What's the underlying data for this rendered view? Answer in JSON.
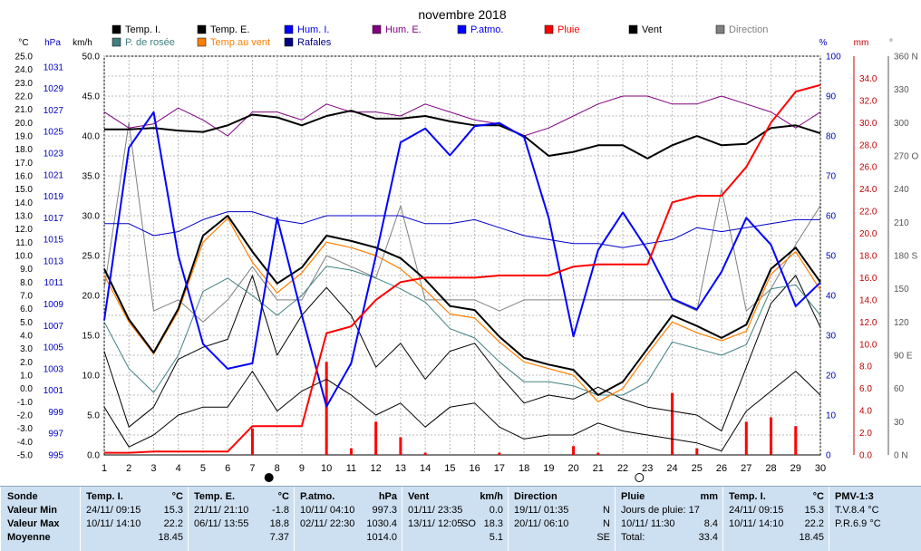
{
  "title": "novembre 2018",
  "colors": {
    "temp_i": "#000000",
    "temp_e": "#000000",
    "hum_i": "#0000c8",
    "hum_e": "#800080",
    "p_atmo": "#0000ff",
    "pluie": "#ff0000",
    "vent": "#000000",
    "direction": "#808080",
    "rosee": "#408080",
    "temp_vent": "#ff8000",
    "rafales": "#000080",
    "panel_bg": "#cde0f2"
  },
  "legend": [
    {
      "label": "Temp. I.",
      "color": "#000000"
    },
    {
      "label": "Temp. E.",
      "color": "#000000"
    },
    {
      "label": "Hum. I.",
      "color": "#0000ff"
    },
    {
      "label": "Hum. E.",
      "color": "#800080"
    },
    {
      "label": "P.atmo.",
      "color": "#0000ff"
    },
    {
      "label": "Pluie",
      "color": "#ff0000"
    },
    {
      "label": "Vent",
      "color": "#000000"
    },
    {
      "label": "Direction",
      "color": "#808080"
    },
    {
      "label": "P. de rosée",
      "color": "#408080"
    },
    {
      "label": "Temp au vent",
      "color": "#ff8000"
    },
    {
      "label": "Rafales",
      "color": "#000080"
    }
  ],
  "chart_data": {
    "type": "line",
    "title": "novembre 2018",
    "x": [
      1,
      2,
      3,
      4,
      5,
      6,
      7,
      8,
      9,
      10,
      11,
      12,
      13,
      14,
      15,
      16,
      17,
      18,
      19,
      20,
      21,
      22,
      23,
      24,
      25,
      26,
      27,
      28,
      29,
      30
    ],
    "moon_phases": [
      {
        "day": 8,
        "phase": "new"
      },
      {
        "day": 23,
        "phase": "full"
      }
    ],
    "axes": {
      "temp": {
        "label": "°C",
        "range": [
          -5.0,
          25.0
        ],
        "ticks": [
          "25.0",
          "24.0",
          "23.0",
          "22.0",
          "21.0",
          "20.0",
          "19.0",
          "18.0",
          "17.0",
          "16.0",
          "15.0",
          "14.0",
          "13.0",
          "12.0",
          "11.0",
          "10.0",
          "9.0",
          "8.0",
          "7.0",
          "6.0",
          "5.0",
          "4.0",
          "3.0",
          "2.0",
          "1.0",
          "0.0",
          "-1.0",
          "-2.0",
          "-3.0",
          "-4.0",
          "-5.0"
        ]
      },
      "pressure": {
        "label": "hPa",
        "range": [
          995,
          1032
        ],
        "ticks": [
          "1031",
          "1029",
          "1027",
          "1025",
          "1023",
          "1021",
          "1019",
          "1017",
          "1015",
          "1013",
          "1011",
          "1009",
          "1007",
          "1005",
          "1003",
          "1001",
          "999",
          "997",
          "995"
        ]
      },
      "wind": {
        "label": "km/h",
        "range": [
          0,
          50
        ],
        "ticks": [
          "50.0",
          "45.0",
          "40.0",
          "35.0",
          "30.0",
          "25.0",
          "20.0",
          "15.0",
          "10.0",
          "5.0",
          "0.0"
        ]
      },
      "humidity": {
        "label": "%",
        "range": [
          0,
          100
        ],
        "ticks": [
          "100",
          "90",
          "80",
          "70",
          "60",
          "50",
          "40",
          "30",
          "20",
          "10",
          "0"
        ]
      },
      "rain": {
        "label": "mm",
        "range": [
          0,
          36
        ],
        "ticks": [
          "34.0",
          "32.0",
          "30.0",
          "28.0",
          "26.0",
          "24.0",
          "22.0",
          "20.0",
          "18.0",
          "16.0",
          "14.0",
          "12.0",
          "10.0",
          "8.0",
          "6.0",
          "4.0",
          "2.0",
          "0.0"
        ]
      },
      "direction": {
        "label": "°",
        "range": [
          0,
          360
        ],
        "ticks": [
          "360 N",
          "330",
          "300",
          "270 O",
          "240",
          "210",
          "180 S",
          "150",
          "120",
          "90 E",
          "60",
          "30",
          "0 N"
        ]
      }
    },
    "series": [
      {
        "name": "Temp. E.",
        "unit": "°C",
        "values": [
          9.0,
          5.2,
          2.7,
          6.0,
          11.5,
          13.0,
          10.3,
          7.9,
          9.1,
          11.5,
          11.1,
          10.6,
          9.8,
          8.2,
          6.2,
          5.9,
          3.9,
          2.3,
          1.8,
          1.4,
          -0.5,
          0.5,
          3.0,
          5.5,
          4.7,
          3.8,
          4.8,
          9.0,
          10.6,
          8.0
        ]
      },
      {
        "name": "Temp au vent",
        "unit": "°C",
        "values": [
          8.5,
          5.0,
          2.6,
          5.8,
          11.0,
          12.8,
          9.5,
          7.2,
          8.7,
          11.0,
          10.6,
          10.0,
          9.0,
          7.4,
          5.6,
          5.3,
          3.5,
          2.0,
          1.5,
          1.0,
          -1.0,
          0.0,
          2.6,
          5.0,
          4.2,
          3.6,
          4.3,
          8.6,
          10.3,
          7.4
        ]
      },
      {
        "name": "P. de rosée",
        "unit": "°C",
        "values": [
          5.0,
          1.5,
          -0.3,
          2.5,
          7.3,
          8.3,
          7.0,
          5.5,
          7.0,
          9.2,
          8.9,
          8.3,
          7.5,
          6.5,
          4.5,
          3.8,
          2.0,
          0.5,
          0.5,
          0.2,
          -0.5,
          -0.5,
          0.5,
          3.5,
          3.0,
          2.5,
          3.3,
          7.5,
          7.8,
          5.5
        ]
      },
      {
        "name": "Temp. I.",
        "unit": "°C",
        "values": [
          19.5,
          19.5,
          19.6,
          19.4,
          19.3,
          19.8,
          20.6,
          20.4,
          19.8,
          20.5,
          20.9,
          20.3,
          20.3,
          20.5,
          20.1,
          19.8,
          19.8,
          19.0,
          17.5,
          17.8,
          18.3,
          18.3,
          17.3,
          18.3,
          19.0,
          18.3,
          18.4,
          19.6,
          19.8,
          19.2
        ]
      },
      {
        "name": "Hum. E.",
        "unit": "%",
        "values": [
          86,
          82,
          83,
          87,
          84,
          80,
          86,
          86,
          84,
          88,
          86,
          86,
          85,
          88,
          86,
          84,
          83,
          80,
          82,
          85,
          88,
          90,
          90,
          88,
          88,
          90,
          88,
          86,
          82,
          86
        ]
      },
      {
        "name": "Hum. I.",
        "unit": "%",
        "values": [
          58,
          58,
          55,
          56,
          59,
          61,
          61,
          59,
          58,
          60,
          60,
          60,
          60,
          58,
          58,
          59,
          57,
          55,
          54,
          53,
          53,
          52,
          53,
          54,
          57,
          56,
          57,
          58,
          59,
          59
        ]
      },
      {
        "name": "P.atmo.",
        "unit": "hPa",
        "values": [
          1007.5,
          1023.5,
          1026.8,
          1013.5,
          1005.3,
          1003.0,
          1003.5,
          1017.0,
          1008.0,
          999.5,
          1003.5,
          1013.5,
          1024.0,
          1025.3,
          1022.8,
          1025.5,
          1025.8,
          1024.5,
          1017.0,
          1006.0,
          1014.0,
          1017.5,
          1014.0,
          1009.5,
          1008.5,
          1012.0,
          1017.0,
          1014.5,
          1008.8,
          1011.0
        ]
      },
      {
        "name": "Pluie",
        "unit": "mm",
        "values": [
          0.2,
          0.2,
          0.3,
          0.3,
          0.3,
          0.3,
          2.6,
          2.6,
          2.6,
          11.0,
          11.6,
          14.0,
          15.6,
          16.0,
          16.0,
          16.0,
          16.2,
          16.2,
          16.2,
          17.0,
          17.2,
          17.2,
          17.2,
          22.8,
          23.4,
          23.4,
          26.0,
          30.0,
          32.8,
          33.4
        ]
      },
      {
        "name": "Pluie journalière",
        "unit": "mm",
        "values": [
          0,
          0,
          0,
          0,
          0,
          0,
          2.4,
          0,
          0,
          8.4,
          0.6,
          3.0,
          1.6,
          0.2,
          0,
          0,
          0.2,
          0,
          0,
          0.8,
          0.2,
          0,
          0,
          5.6,
          0.6,
          0,
          3.0,
          3.4,
          2.6,
          0
        ]
      },
      {
        "name": "Rafales",
        "unit": "km/h",
        "values": [
          13.0,
          3.5,
          6.0,
          12.0,
          13.5,
          14.5,
          22.5,
          12.5,
          17.5,
          21.0,
          17.5,
          11.0,
          14.0,
          9.5,
          13.0,
          14.0,
          10.0,
          6.5,
          7.5,
          7.0,
          8.5,
          7.0,
          6.0,
          5.5,
          5.0,
          3.0,
          11.0,
          19.0,
          22.5,
          16.0
        ]
      },
      {
        "name": "Vent",
        "unit": "km/h",
        "values": [
          6.0,
          1.0,
          2.5,
          5.0,
          6.0,
          6.0,
          10.5,
          5.5,
          8.0,
          9.5,
          7.5,
          5.0,
          6.5,
          3.5,
          6.0,
          6.5,
          3.5,
          2.0,
          2.5,
          2.5,
          4.0,
          3.0,
          2.5,
          2.0,
          1.5,
          0.5,
          5.5,
          8.0,
          10.5,
          7.5
        ]
      },
      {
        "name": "Direction",
        "unit": "°",
        "values": [
          150,
          300,
          130,
          140,
          120,
          140,
          170,
          140,
          140,
          180,
          170,
          160,
          225,
          140,
          140,
          140,
          130,
          140,
          140,
          140,
          140,
          140,
          140,
          140,
          130,
          240,
          130,
          150,
          190,
          225
        ]
      }
    ]
  },
  "stats": {
    "columns": [
      {
        "id": "labels",
        "rows": [
          "Sonde",
          "Valeur Min",
          "Valeur Max",
          "Moyenne"
        ]
      },
      {
        "id": "temp_i",
        "header": "Temp. I.",
        "unit": "°C",
        "min": {
          "when": "24/11/  09:15",
          "value": "15.3"
        },
        "max": {
          "when": "10/11/  14:10",
          "value": "22.2"
        },
        "avg": "18.45"
      },
      {
        "id": "temp_e",
        "header": "Temp. E.",
        "unit": "°C",
        "min": {
          "when": "21/11/  21:10",
          "value": "-1.8"
        },
        "max": {
          "when": "06/11/  13:55",
          "value": "18.8"
        },
        "avg": "7.37"
      },
      {
        "id": "p_atmo",
        "header": "P.atmo.",
        "unit": "hPa",
        "min": {
          "when": "10/11/  04:10",
          "value": "997.3"
        },
        "max": {
          "when": "02/11/  22:30",
          "value": "1030.4"
        },
        "avg": "1014.0"
      },
      {
        "id": "vent",
        "header": "Vent",
        "unit": "km/h",
        "min": {
          "when": "01/11/  23:35",
          "value": "0.0"
        },
        "max": {
          "when": "13/11/  12:05",
          "dir": "SO",
          "value": "18.3"
        },
        "avg": "5.1"
      },
      {
        "id": "direction",
        "header": "Direction",
        "unit": "",
        "min": {
          "when": "19/11/  01:35",
          "value": "N"
        },
        "max": {
          "when": "20/11/  06:10",
          "value": "N"
        },
        "avg": "SE"
      },
      {
        "id": "pluie",
        "header": "Pluie",
        "unit": "mm",
        "min": {
          "when": "Jours de pluie: 17",
          "value": ""
        },
        "max": {
          "when": "10/11/  11:30",
          "value": "8.4"
        },
        "avg_label": "Total:",
        "avg": "33.4"
      },
      {
        "id": "temp_i2",
        "header": "Temp. I.",
        "unit": "°C",
        "min": {
          "when": "24/11/  09:15",
          "value": "15.3"
        },
        "max": {
          "when": "10/11/  14:10",
          "value": "22.2"
        },
        "avg": "18.45"
      },
      {
        "id": "pmv",
        "header": "PMV-1:3",
        "unit": "",
        "min": {
          "when": "T.V.8.4 °C",
          "value": ""
        },
        "max": {
          "when": "P.R.6.9 °C",
          "value": ""
        },
        "avg": ""
      }
    ]
  }
}
